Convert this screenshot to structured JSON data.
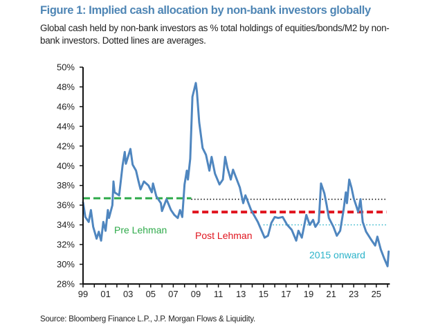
{
  "title": "Figure 1: Implied cash allocation by non-bank investors globally",
  "subtitle": "Global cash held by non-bank investors as % total holdings of equities/bonds/M2 by non-bank investors. Dotted lines are averages.",
  "source": "Source: Bloomberg Finance L.P., J.P. Morgan Flows & Liquidity.",
  "chart_data": {
    "type": "line",
    "title": "Figure 1: Implied cash allocation by non-bank investors globally",
    "xlabel": "",
    "ylabel": "",
    "xlim": [
      1999,
      2026.2
    ],
    "ylim": [
      28,
      50
    ],
    "y_tick_labels": [
      "28%",
      "30%",
      "32%",
      "34%",
      "36%",
      "38%",
      "40%",
      "42%",
      "44%",
      "46%",
      "48%",
      "50%"
    ],
    "x_tick_labels": [
      "99",
      "01",
      "03",
      "05",
      "07",
      "09",
      "11",
      "13",
      "15",
      "17",
      "19",
      "21",
      "23",
      "25"
    ],
    "x_tick_years": [
      1999,
      2001,
      2003,
      2005,
      2007,
      2009,
      2011,
      2013,
      2015,
      2017,
      2019,
      2021,
      2023,
      2025
    ],
    "grid": false,
    "series": [
      {
        "color": "#4f86bf",
        "x": [
          1999.0,
          1999.2,
          1999.5,
          1999.7,
          1999.9,
          2000.2,
          2000.4,
          2000.6,
          2000.8,
          2001.0,
          2001.2,
          2001.3,
          2001.6,
          2001.7,
          2001.8,
          2002.2,
          2002.5,
          2002.7,
          2002.8,
          2003.2,
          2003.4,
          2003.7,
          2003.9,
          2004.1,
          2004.4,
          2004.8,
          2005.1,
          2005.2,
          2005.5,
          2005.9,
          2006.0,
          2006.4,
          2006.8,
          2007.1,
          2007.4,
          2007.6,
          2007.8,
          2008.0,
          2008.2,
          2008.3,
          2008.5,
          2008.7,
          2009.0,
          2009.1,
          2009.3,
          2009.6,
          2009.9,
          2010.2,
          2010.4,
          2010.7,
          2011.1,
          2011.4,
          2011.6,
          2011.8,
          2012.1,
          2012.3,
          2012.7,
          2012.9,
          2013.2,
          2013.4,
          2013.7,
          2013.9,
          2014.5,
          2015.1,
          2015.4,
          2015.7,
          2016.0,
          2016.3,
          2016.7,
          2017.1,
          2017.5,
          2017.9,
          2018.1,
          2018.4,
          2018.8,
          2019.1,
          2019.4,
          2019.6,
          2019.9,
          2020.1,
          2020.4,
          2020.6,
          2020.8,
          2021.2,
          2021.5,
          2021.8,
          2022.1,
          2022.3,
          2022.4,
          2022.6,
          2022.8,
          2023.0,
          2023.2,
          2023.4,
          2023.6,
          2023.8,
          2024.1,
          2024.6,
          2024.9,
          2025.1,
          2025.4,
          2025.7,
          2026.0,
          2026.1
        ],
        "y": [
          36.3,
          34.8,
          34.3,
          35.5,
          33.8,
          32.6,
          33.3,
          32.4,
          34.3,
          33.4,
          35.5,
          34.7,
          36.0,
          38.4,
          37.3,
          37.0,
          40.0,
          41.4,
          40.2,
          41.7,
          40.1,
          39.5,
          38.5,
          37.6,
          38.4,
          38.0,
          37.3,
          38.2,
          36.9,
          36.2,
          35.4,
          36.6,
          35.5,
          35.0,
          34.7,
          35.5,
          34.8,
          38.1,
          39.5,
          38.6,
          40.7,
          47.0,
          48.4,
          47.5,
          44.4,
          41.8,
          41.1,
          39.5,
          40.9,
          39.2,
          38.1,
          38.6,
          40.9,
          39.8,
          38.6,
          39.6,
          38.4,
          37.8,
          36.2,
          37.0,
          36.1,
          35.5,
          34.3,
          32.7,
          32.9,
          34.2,
          34.8,
          34.7,
          34.8,
          34.0,
          33.5,
          32.4,
          33.4,
          32.7,
          35.0,
          34.0,
          34.5,
          33.8,
          34.3,
          38.2,
          37.2,
          36.0,
          34.7,
          33.8,
          32.9,
          33.4,
          35.5,
          37.3,
          36.2,
          38.6,
          37.8,
          36.7,
          36.0,
          35.3,
          36.6,
          34.3,
          33.3,
          32.4,
          31.9,
          32.8,
          31.5,
          30.6,
          29.8,
          31.3
        ]
      }
    ],
    "averages": [
      {
        "label": "Pre Lehman",
        "value": 36.7,
        "x_range": [
          1999,
          2008.6
        ],
        "color": "#2eaa4a",
        "style": "dashed"
      },
      {
        "label": "",
        "value": 36.6,
        "x_range": [
          2008.6,
          2025.9
        ],
        "color": "#111111",
        "style": "dotted"
      },
      {
        "label": "Post Lehman",
        "value": 35.3,
        "x_range": [
          2008.7,
          2025.9
        ],
        "color": "#e0141e",
        "style": "dashed"
      },
      {
        "label": "2015 onward",
        "value": 34.0,
        "x_range": [
          2015.0,
          2025.9
        ],
        "color": "#2bb3c9",
        "style": "dotted"
      }
    ]
  }
}
